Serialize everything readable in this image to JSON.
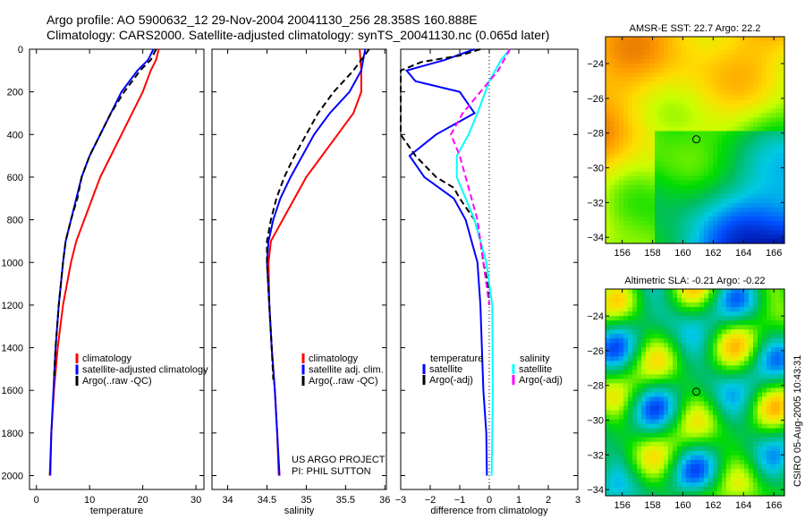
{
  "title": {
    "line1": "Argo profile: AO 5900632_12 29-Nov-2004 20041130_256 28.358S 160.888E",
    "line2": "Climatology: CARS2000. Satellite-adjusted climatology: synTS_20041130.nc (0.065d later)"
  },
  "footer_stamp": "CSIRO 05-Aug-2005 10:43:31",
  "project": {
    "line1": "US ARGO PROJECT",
    "line2": "PI: PHIL SUTTON"
  },
  "colors": {
    "climatology": "#ff0000",
    "satellite": "#0000ff",
    "argo": "#000000",
    "sal_satellite": "#00ffff",
    "sal_argo": "#ff00ff"
  },
  "chart_data": [
    {
      "type": "line",
      "xlabel": "temperature",
      "ylabel": "",
      "xlim": [
        -1.3,
        31.5
      ],
      "ylim": [
        0,
        2065
      ],
      "xticks": [
        "0",
        "10",
        "20",
        "30"
      ],
      "yticks": [
        "0",
        "200",
        "400",
        "600",
        "800",
        "1000",
        "1200",
        "1400",
        "1600",
        "1800",
        "2000"
      ],
      "legend": [
        "climatology",
        "satellite-adjusted climatology",
        "Argo(..raw -QC)"
      ],
      "series": [
        {
          "name": "climatology",
          "color": "#ff0000",
          "dash": false,
          "depth": [
            0,
            50,
            100,
            200,
            300,
            400,
            500,
            600,
            700,
            800,
            900,
            1000,
            1200,
            1400,
            1600,
            1800,
            2000
          ],
          "values": [
            23,
            22.5,
            21.5,
            20,
            18,
            16,
            14,
            12,
            10.5,
            9,
            7.5,
            6.5,
            5,
            4,
            3.3,
            2.8,
            2.5
          ]
        },
        {
          "name": "satellite-adjusted climatology",
          "color": "#0000ff",
          "dash": false,
          "depth": [
            0,
            50,
            100,
            200,
            300,
            400,
            500,
            600,
            700,
            800,
            900,
            1000,
            1200,
            1400,
            1600,
            1800,
            2000
          ],
          "values": [
            22,
            21,
            19,
            16,
            14,
            12,
            10,
            8.5,
            7.5,
            6.5,
            5.5,
            5,
            4.2,
            3.6,
            3.2,
            2.8,
            2.6
          ]
        },
        {
          "name": "Argo(..raw -QC)",
          "color": "#000000",
          "dash": true,
          "depth": [
            0,
            50,
            100,
            200,
            300,
            400,
            500,
            600,
            700,
            800,
            900,
            1000,
            1200,
            1400,
            1550
          ],
          "values": [
            22.5,
            21.5,
            19.5,
            16.5,
            14,
            12,
            10,
            8.5,
            7.7,
            6.5,
            5.5,
            5,
            4.2,
            3.6,
            3.3
          ]
        }
      ]
    },
    {
      "type": "line",
      "xlabel": "salinity",
      "ylabel": "",
      "xlim": [
        33.8,
        36.02
      ],
      "ylim": [
        0,
        2065
      ],
      "xticks": [
        "34",
        "34.5",
        "35",
        "35.5",
        "36"
      ],
      "legend": [
        "climatology",
        "satellite adj. clim.",
        "Argo(..raw -QC)"
      ],
      "series": [
        {
          "name": "climatology",
          "color": "#ff0000",
          "dash": false,
          "depth": [
            0,
            100,
            200,
            300,
            400,
            500,
            600,
            700,
            800,
            900,
            1000,
            1200,
            1400,
            1600,
            1800,
            2000
          ],
          "values": [
            35.68,
            35.7,
            35.7,
            35.6,
            35.4,
            35.2,
            35.0,
            34.85,
            34.7,
            34.55,
            34.52,
            34.53,
            34.56,
            34.6,
            34.63,
            34.65
          ]
        },
        {
          "name": "satellite adj. clim.",
          "color": "#0000ff",
          "dash": false,
          "depth": [
            0,
            100,
            200,
            300,
            400,
            500,
            600,
            700,
            800,
            900,
            1000,
            1200,
            1400,
            1600,
            1800,
            2000
          ],
          "values": [
            35.75,
            35.7,
            35.55,
            35.3,
            35.1,
            34.95,
            34.8,
            34.67,
            34.58,
            34.52,
            34.5,
            34.53,
            34.56,
            34.6,
            34.63,
            34.66
          ]
        },
        {
          "name": "Argo(..raw -QC)",
          "color": "#000000",
          "dash": true,
          "depth": [
            0,
            100,
            200,
            300,
            400,
            500,
            600,
            700,
            800,
            900,
            1000,
            1200,
            1400,
            1550
          ],
          "values": [
            35.8,
            35.6,
            35.35,
            35.15,
            35.0,
            34.85,
            34.72,
            34.62,
            34.55,
            34.5,
            34.5,
            34.53,
            34.56,
            34.58
          ]
        }
      ]
    },
    {
      "type": "line",
      "xlabel": "difference from climatology",
      "ylabel": "",
      "xlim": [
        -3,
        3
      ],
      "ylim": [
        0,
        2065
      ],
      "xticks": [
        "-3",
        "-2",
        "-1",
        "0",
        "1",
        "2",
        "3"
      ],
      "legend_temp": {
        "title": "temperature",
        "items": [
          "satellite",
          "Argo(-adj)"
        ]
      },
      "legend_sal": {
        "title": "salinity",
        "items": [
          "satellite",
          "Argo(-adj)"
        ]
      },
      "series": [
        {
          "name": "temperature satellite",
          "color": "#0000ff",
          "dash": false,
          "depth": [
            0,
            50,
            100,
            150,
            200,
            300,
            400,
            500,
            600,
            700,
            800,
            900,
            1000,
            1200,
            1400,
            1600,
            1800,
            2000
          ],
          "values": [
            -0.5,
            -1.5,
            -2.8,
            -2.5,
            -1,
            -0.5,
            -1.8,
            -2.7,
            -2.2,
            -1.2,
            -0.8,
            -0.6,
            -0.4,
            -0.3,
            -0.25,
            -0.2,
            -0.1,
            -0.08
          ]
        },
        {
          "name": "temperature Argo(-adj)",
          "color": "#000000",
          "dash": true,
          "depth": [
            0,
            30,
            60,
            100,
            200,
            400,
            500,
            600,
            650,
            700,
            800,
            900,
            1000,
            1100,
            1200
          ],
          "values": [
            -0.3,
            -1,
            -2.3,
            -3,
            -3,
            -3,
            -2.5,
            -1.8,
            -1.2,
            -1,
            -0.5,
            -0.3,
            -0.2,
            -0.05,
            0
          ]
        },
        {
          "name": "salinity satellite",
          "color": "#00ffff",
          "dash": false,
          "depth": [
            0,
            50,
            150,
            300,
            400,
            500,
            600,
            700,
            800,
            900,
            1000,
            1200,
            1600,
            2000
          ],
          "values": [
            0.7,
            0.4,
            0,
            -0.4,
            -0.7,
            -1.1,
            -1.1,
            -0.8,
            -0.5,
            -0.3,
            -0.1,
            0.1,
            0.12,
            0.08
          ]
        },
        {
          "name": "salinity Argo(-adj)",
          "color": "#ff00ff",
          "dash": true,
          "depth": [
            0,
            100,
            200,
            300,
            400,
            500,
            600,
            700,
            800,
            1000,
            1200
          ],
          "values": [
            0.7,
            0.3,
            -0.3,
            -0.9,
            -1.3,
            -1,
            -0.8,
            -0.6,
            -0.4,
            -0.2,
            0
          ]
        }
      ]
    },
    {
      "type": "heatmap",
      "title": "AMSR-E SST: 22.7 Argo: 22.2",
      "xticks": [
        "156",
        "158",
        "160",
        "162",
        "164",
        "166"
      ],
      "yticks": [
        "-24",
        "-26",
        "-28",
        "-30",
        "-32",
        "-34"
      ],
      "marker": {
        "lon": 160.888,
        "lat": -28.358
      }
    },
    {
      "type": "heatmap",
      "title": "Altimetric SLA: -0.21 Argo: -0.22",
      "xticks": [
        "156",
        "158",
        "160",
        "162",
        "164",
        "166"
      ],
      "yticks": [
        "-24",
        "-26",
        "-28",
        "-30",
        "-32",
        "-34"
      ],
      "marker": {
        "lon": 160.888,
        "lat": -28.358
      }
    }
  ]
}
